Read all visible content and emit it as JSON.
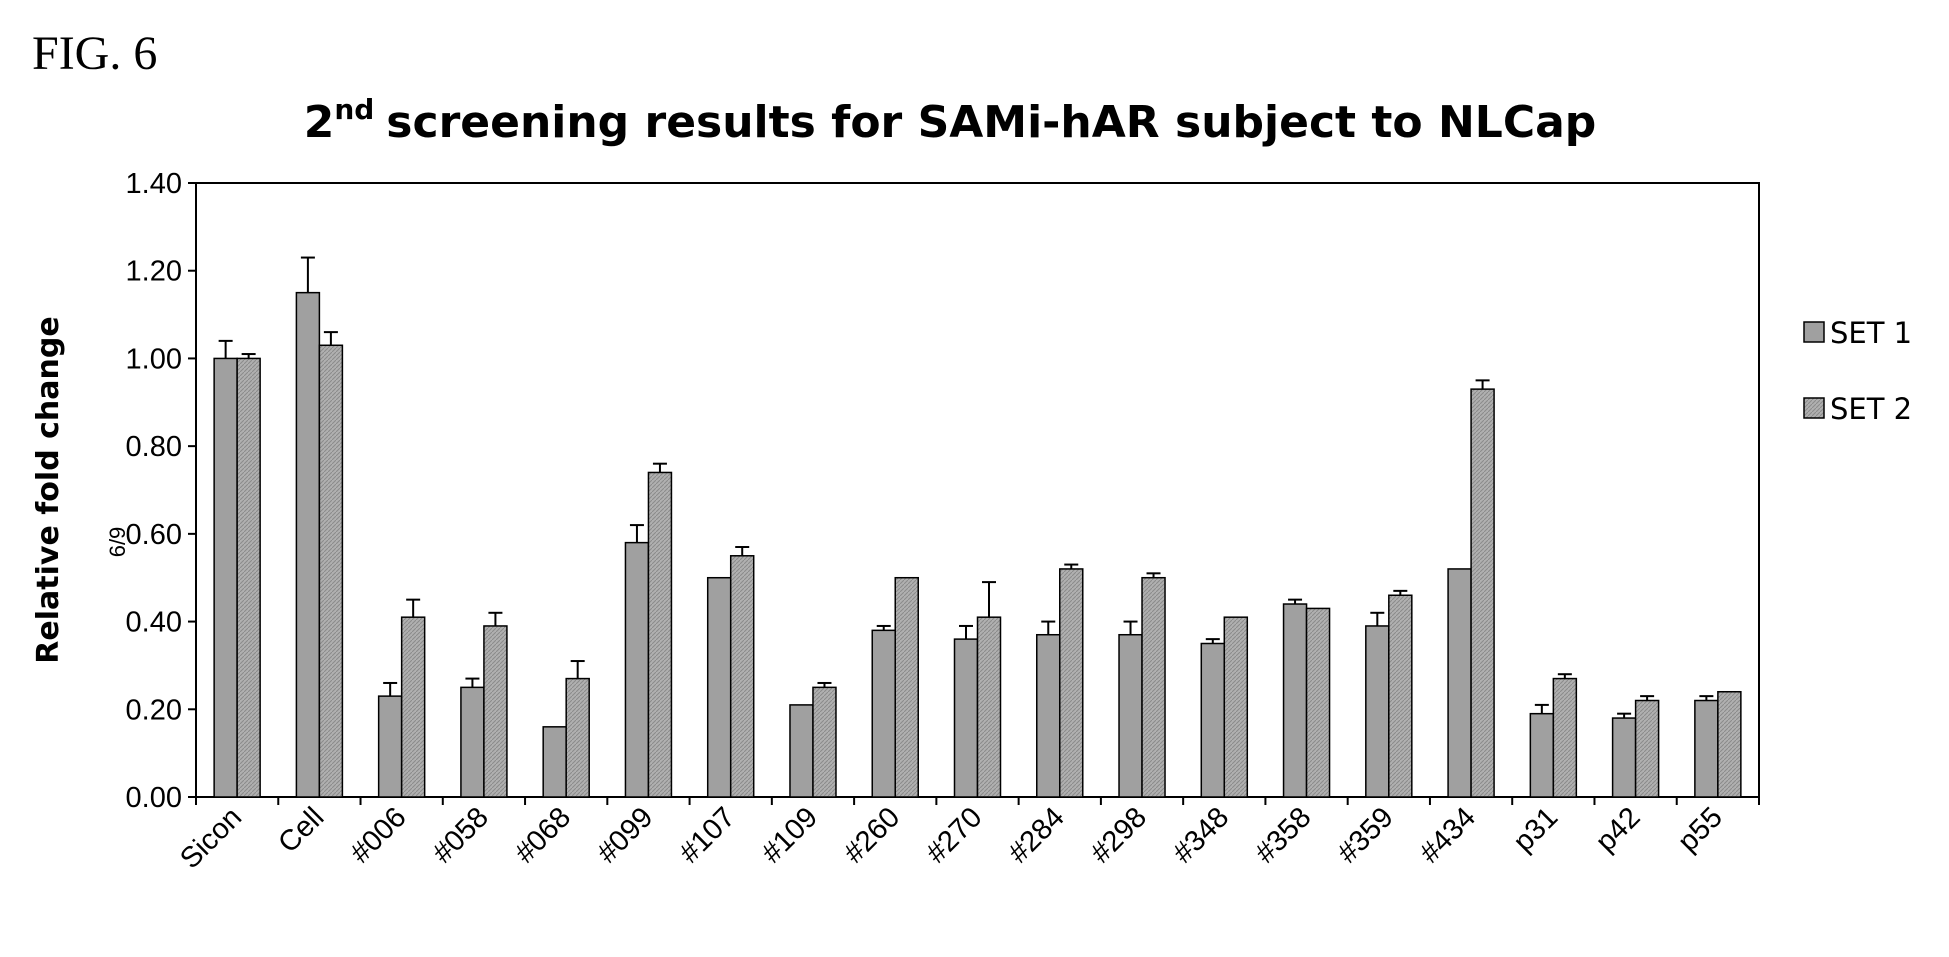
{
  "figure_label": "FIG. 6",
  "chart_data": {
    "type": "bar",
    "title": "2nd screening results for SAMi-hAR subject to NLCap",
    "title_parts": {
      "base": "2",
      "superscript": "nd",
      "rest": "screening results for SAMi-hAR subject to NLCap"
    },
    "xlabel": "",
    "ylabel": "Relative fold change",
    "ylim": [
      0,
      1.4
    ],
    "yticks": [
      "0.00",
      "0.20",
      "0.40",
      "0.60",
      "0.80",
      "1.00",
      "1.20",
      "1.40"
    ],
    "ytick_values": [
      0,
      0.2,
      0.4,
      0.6,
      0.8,
      1.0,
      1.2,
      1.4
    ],
    "grid": false,
    "legend_placement": "right",
    "stray_label": "6/9",
    "categories": [
      "Sicon",
      "Cell",
      "#006",
      "#058",
      "#068",
      "#099",
      "#107",
      "#109",
      "#260",
      "#270",
      "#284",
      "#298",
      "#348",
      "#358",
      "#359",
      "#434",
      "p31",
      "p42",
      "p55"
    ],
    "series": [
      {
        "name": "SET 1",
        "color": "#9a9a9a",
        "values": [
          1.0,
          1.15,
          0.23,
          0.25,
          0.16,
          0.58,
          0.5,
          0.21,
          0.38,
          0.36,
          0.37,
          0.37,
          0.35,
          0.44,
          0.39,
          0.52,
          0.19,
          0.18,
          0.22
        ],
        "errors": [
          0.04,
          0.08,
          0.03,
          0.02,
          0.0,
          0.04,
          0.0,
          0.0,
          0.01,
          0.03,
          0.03,
          0.03,
          0.01,
          0.01,
          0.03,
          0.0,
          0.02,
          0.01,
          0.01
        ]
      },
      {
        "name": "SET 2",
        "color": "#b8b8b8",
        "values": [
          1.0,
          1.03,
          0.41,
          0.39,
          0.27,
          0.74,
          0.55,
          0.25,
          0.5,
          0.41,
          0.52,
          0.5,
          0.41,
          0.43,
          0.46,
          0.93,
          0.27,
          0.22,
          0.24
        ],
        "errors": [
          0.01,
          0.03,
          0.04,
          0.03,
          0.04,
          0.02,
          0.02,
          0.01,
          0.0,
          0.08,
          0.01,
          0.01,
          0.0,
          0.0,
          0.01,
          0.02,
          0.01,
          0.01,
          0.0
        ]
      }
    ]
  }
}
